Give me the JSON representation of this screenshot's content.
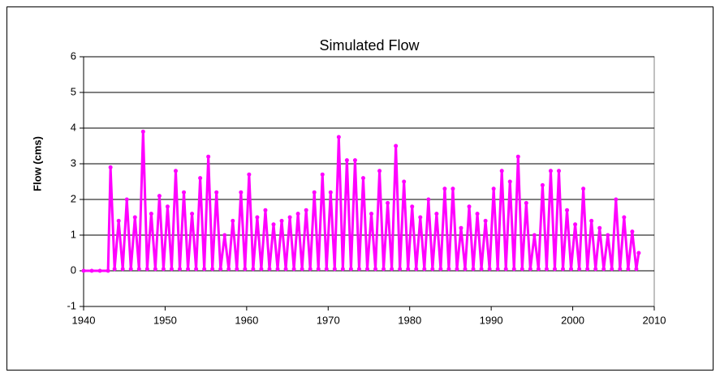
{
  "chart_data": {
    "type": "line",
    "title": "Simulated Flow",
    "y_label": "Flow (cms)",
    "xlim": [
      1940,
      2010
    ],
    "xticks": [
      1940,
      1950,
      1960,
      1970,
      1980,
      1990,
      2000,
      2010
    ],
    "ylim": [
      -1,
      6
    ],
    "yticks": [
      -1,
      0,
      1,
      2,
      3,
      4,
      5,
      6
    ],
    "grid": true,
    "series": [
      {
        "color": "#ff00ff",
        "x": [
          1940,
          1941,
          1942,
          1943,
          1943.3,
          1943.8,
          1944.3,
          1944.8,
          1945.3,
          1945.8,
          1946.3,
          1946.8,
          1947.3,
          1947.8,
          1948.3,
          1948.8,
          1949.3,
          1949.8,
          1950.3,
          1950.8,
          1951.3,
          1951.8,
          1952.3,
          1952.8,
          1953.3,
          1953.8,
          1954.3,
          1954.8,
          1955.3,
          1955.8,
          1956.3,
          1956.8,
          1957.3,
          1957.8,
          1958.3,
          1958.8,
          1959.3,
          1959.8,
          1960.3,
          1960.8,
          1961.3,
          1961.8,
          1962.3,
          1962.8,
          1963.3,
          1963.8,
          1964.3,
          1964.8,
          1965.3,
          1965.8,
          1966.3,
          1966.8,
          1967.3,
          1967.8,
          1968.3,
          1968.8,
          1969.3,
          1969.8,
          1970.3,
          1970.8,
          1971.3,
          1971.8,
          1972.3,
          1972.8,
          1973.3,
          1973.8,
          1974.3,
          1974.8,
          1975.3,
          1975.8,
          1976.3,
          1976.8,
          1977.3,
          1977.8,
          1978.3,
          1978.8,
          1979.3,
          1979.8,
          1980.3,
          1980.8,
          1981.3,
          1981.8,
          1982.3,
          1982.8,
          1983.3,
          1983.8,
          1984.3,
          1984.8,
          1985.3,
          1985.8,
          1986.3,
          1986.8,
          1987.3,
          1987.8,
          1988.3,
          1988.8,
          1989.3,
          1989.8,
          1990.3,
          1990.8,
          1991.3,
          1991.8,
          1992.3,
          1992.8,
          1993.3,
          1993.8,
          1994.3,
          1994.8,
          1995.3,
          1995.8,
          1996.3,
          1996.8,
          1997.3,
          1997.8,
          1998.3,
          1998.8,
          1999.3,
          1999.8,
          2000.3,
          2000.8,
          2001.3,
          2001.8,
          2002.3,
          2002.8,
          2003.3,
          2003.8,
          2004.3,
          2004.8,
          2005.3,
          2005.8,
          2006.3,
          2006.8,
          2007.3,
          2007.8,
          2008.1
        ],
        "values": [
          0,
          0,
          0,
          0,
          2.9,
          0.05,
          1.4,
          0.05,
          2.0,
          0.05,
          1.5,
          0.05,
          3.9,
          0.05,
          1.6,
          0.05,
          2.1,
          0.05,
          1.8,
          0.05,
          2.8,
          0.05,
          2.2,
          0.05,
          1.6,
          0.05,
          2.6,
          0.05,
          3.2,
          0.05,
          2.2,
          0.05,
          1.0,
          0.05,
          1.4,
          0.05,
          2.2,
          0.05,
          2.7,
          0.05,
          1.5,
          0.05,
          1.7,
          0.05,
          1.3,
          0.05,
          1.4,
          0.05,
          1.5,
          0.05,
          1.6,
          0.05,
          1.7,
          0.05,
          2.2,
          0.05,
          2.7,
          0.05,
          2.2,
          0.05,
          3.75,
          0.05,
          3.1,
          0.05,
          3.1,
          0.05,
          2.6,
          0.05,
          1.6,
          0.05,
          2.8,
          0.05,
          1.9,
          0.05,
          3.5,
          0.05,
          2.5,
          0.05,
          1.8,
          0.05,
          1.5,
          0.05,
          2.0,
          0.05,
          1.6,
          0.05,
          2.3,
          0.05,
          2.3,
          0.05,
          1.2,
          0.05,
          1.8,
          0.05,
          1.6,
          0.05,
          1.4,
          0.05,
          2.3,
          0.05,
          2.8,
          0.05,
          2.5,
          0.05,
          3.2,
          0.05,
          1.9,
          0.05,
          1.0,
          0.05,
          2.4,
          0.05,
          2.8,
          0.05,
          2.8,
          0.05,
          1.7,
          0.05,
          1.3,
          0.05,
          2.3,
          0.05,
          1.4,
          0.05,
          1.2,
          0.05,
          1.0,
          0.05,
          2.0,
          0.05,
          1.5,
          0.05,
          1.1,
          0.05,
          0.5
        ]
      }
    ]
  }
}
